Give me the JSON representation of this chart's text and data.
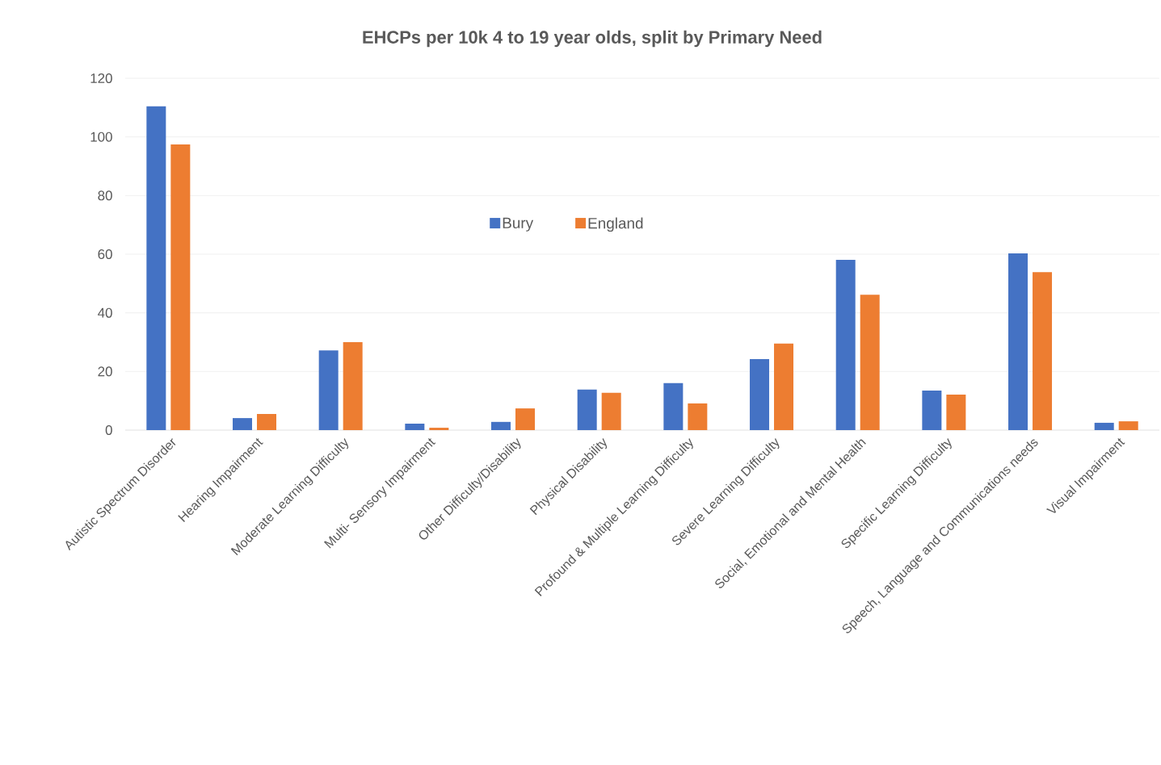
{
  "chart_data": {
    "type": "bar",
    "title": "EHCPs per 10k 4 to 19 year olds, split by Primary Need",
    "categories": [
      "Autistic Spectrum Disorder",
      "Hearing Impairment",
      "Moderate Learning Difficulty",
      "Multi- Sensory Impairment",
      "Other Difficulty/Disability",
      "Physical Disability",
      "Profound & Multiple Learning Difficulty",
      "Severe Learning Difficulty",
      "Social, Emotional and Mental Health",
      "Specific Learning Difficulty",
      "Speech, Language and Communications needs",
      "Visual Impairment"
    ],
    "series": [
      {
        "name": "Bury",
        "color": "#4472c4",
        "values": [
          110.4,
          4.1,
          27.2,
          2.2,
          2.8,
          13.8,
          16.0,
          24.2,
          58.1,
          13.5,
          60.3,
          2.5
        ]
      },
      {
        "name": "England",
        "color": "#ed7d31",
        "values": [
          97.4,
          5.5,
          30.0,
          0.8,
          7.4,
          12.7,
          9.1,
          29.5,
          46.2,
          12.1,
          53.9,
          3.0
        ]
      }
    ],
    "ylim": [
      0,
      120
    ],
    "yticks": [
      0,
      20,
      40,
      60,
      80,
      100,
      120
    ],
    "grid": "y",
    "legend": "top"
  }
}
